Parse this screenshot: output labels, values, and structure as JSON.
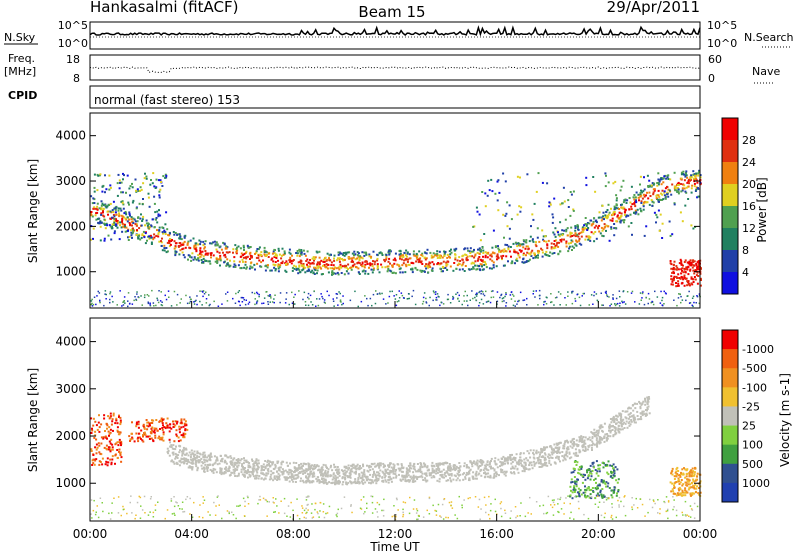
{
  "header": {
    "station": "Hankasalmi (fitACF)",
    "beam": "Beam 15",
    "date": "29/Apr/2011"
  },
  "strips": {
    "nsky_label": "N.Sky",
    "nsearch_label": "N.Search",
    "nsky_ticks": [
      "10^5",
      "10^0"
    ],
    "nsky_right_ticks": [
      "10^5",
      "10^0"
    ],
    "freq_label": "Freq.",
    "freq_unit": "[MHz]",
    "freq_ticks": [
      "18",
      "8"
    ],
    "nave_label": "Nave",
    "nave_ticks": [
      "60",
      "0"
    ],
    "cpid_label": "CPID",
    "cpid_text": "normal (fast stereo) 153"
  },
  "chart_data": [
    {
      "type": "heatmap",
      "title": "",
      "xlabel": "",
      "ylabel": "Slant Range [km]",
      "yticks": [
        "1000",
        "2000",
        "3000",
        "4000"
      ],
      "ylim": [
        200,
        4500
      ],
      "colorbar": {
        "label": "Power [dB]",
        "ticks": [
          "4",
          "8",
          "12",
          "16",
          "20",
          "24",
          "28"
        ],
        "colors": [
          "#1010e0",
          "#2040a8",
          "#208060",
          "#50a050",
          "#e0d020",
          "#f08010",
          "#e03010",
          "#f00000"
        ]
      },
      "echo_band": {
        "description_free": true,
        "x_hours": [
          0,
          1,
          2,
          3,
          4,
          6,
          8,
          10,
          12,
          14,
          16,
          18,
          19.5,
          20.5,
          22,
          23,
          24
        ],
        "range_km": [
          2400,
          2200,
          1950,
          1700,
          1500,
          1350,
          1250,
          1200,
          1250,
          1250,
          1350,
          1600,
          1850,
          2200,
          2700,
          3000,
          3000
        ]
      }
    },
    {
      "type": "heatmap",
      "title": "",
      "xlabel": "Time UT",
      "ylabel": "Slant Range [km]",
      "xticks": [
        "00:00",
        "04:00",
        "08:00",
        "12:00",
        "16:00",
        "20:00",
        "00:00"
      ],
      "yticks": [
        "1000",
        "2000",
        "3000",
        "4000"
      ],
      "ylim": [
        200,
        4500
      ],
      "colorbar": {
        "label": "Velocity [m s-1]",
        "ticks": [
          "1000",
          "500",
          "100",
          "25",
          "-25",
          "-100",
          "-500",
          "-1000"
        ],
        "colors": [
          "#2040b0",
          "#305090",
          "#40a040",
          "#80d040",
          "#c0c0b8",
          "#f0c030",
          "#f09020",
          "#f06010",
          "#f00000"
        ]
      }
    }
  ]
}
